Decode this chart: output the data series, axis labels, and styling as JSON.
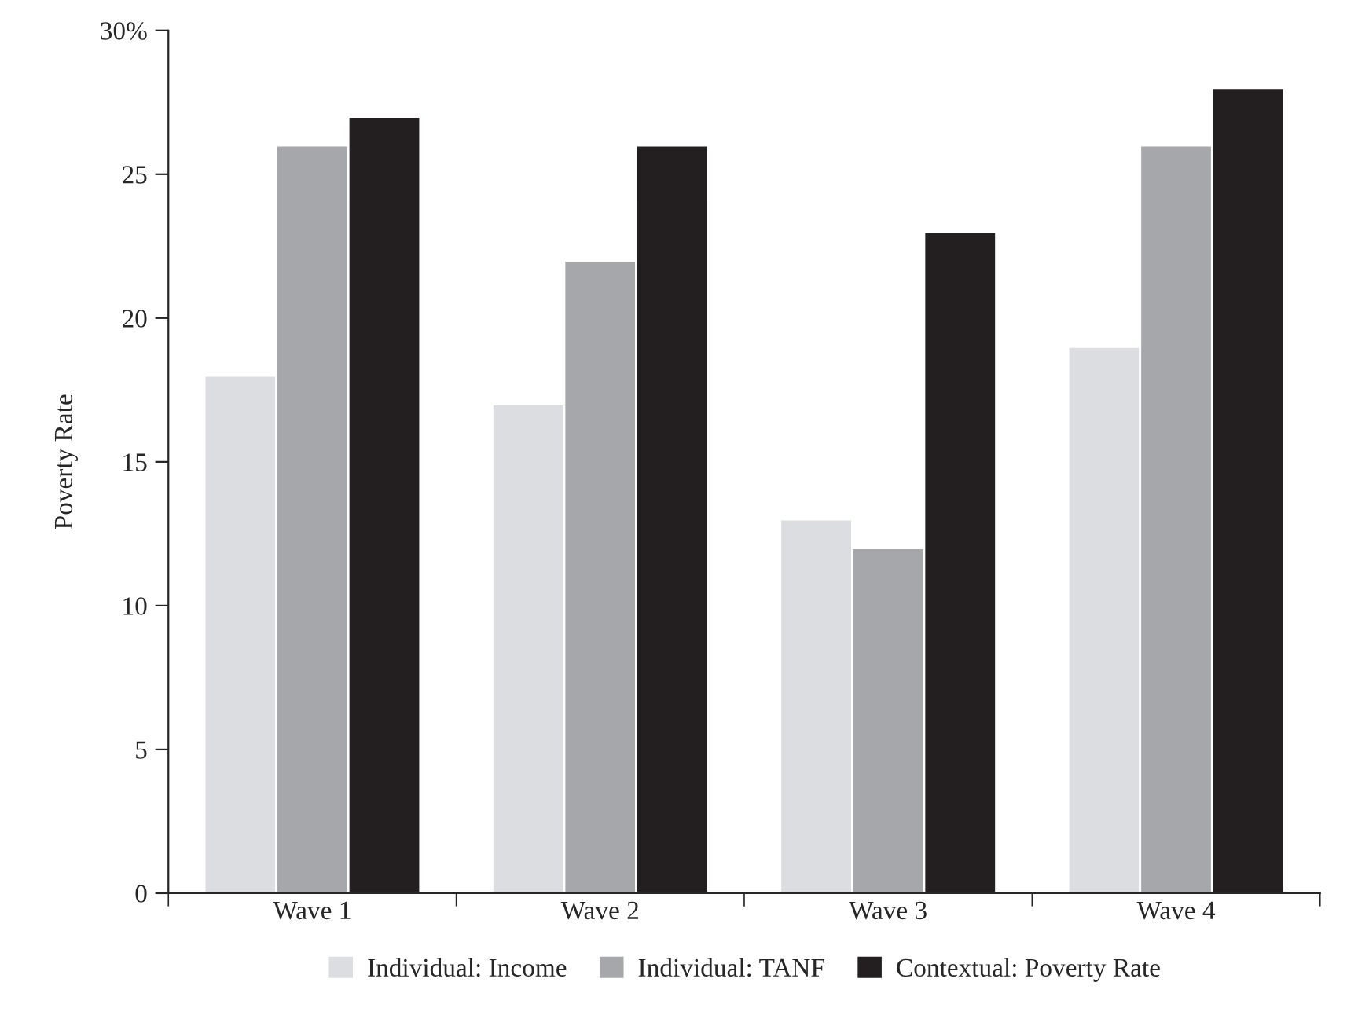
{
  "chart_data": {
    "type": "bar",
    "ylabel": "Poverty Rate",
    "categories": [
      "Wave 1",
      "Wave 2",
      "Wave 3",
      "Wave 4"
    ],
    "series": [
      {
        "name": "Individual: Income",
        "color": "#dcdde0",
        "values": [
          18,
          17,
          13,
          19
        ]
      },
      {
        "name": "Individual: TANF",
        "color": "#a6a7aa",
        "values": [
          26,
          22,
          12,
          26
        ]
      },
      {
        "name": "Contextual: Poverty Rate",
        "color": "#231f20",
        "values": [
          27,
          26,
          23,
          28
        ]
      }
    ],
    "ylim": [
      0,
      30
    ],
    "yticks": [
      0,
      5,
      10,
      15,
      20,
      25,
      {
        "value": 30,
        "label": "30%"
      }
    ],
    "grid": false,
    "legend": "bottom"
  }
}
